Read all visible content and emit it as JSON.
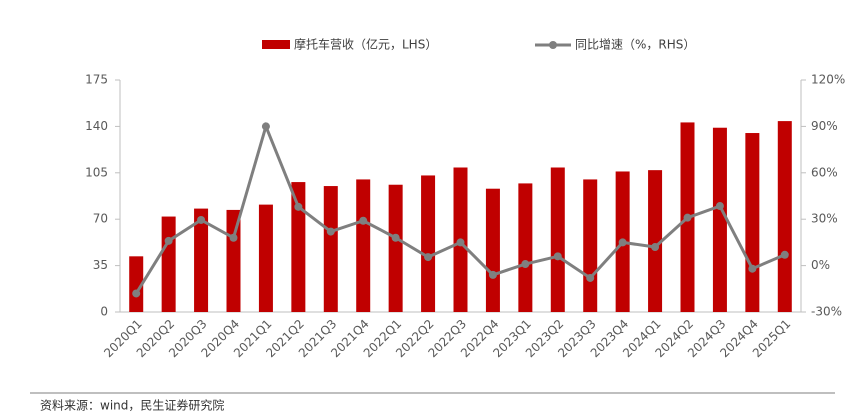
{
  "chart_data": {
    "type": "bar_line",
    "categories": [
      "2020Q1",
      "2020Q2",
      "2020Q3",
      "2020Q4",
      "2021Q1",
      "2021Q2",
      "2021Q3",
      "2021Q4",
      "2022Q1",
      "2022Q2",
      "2022Q3",
      "2022Q4",
      "2023Q1",
      "2023Q2",
      "2023Q3",
      "2023Q4",
      "2024Q1",
      "2024Q2",
      "2024Q3",
      "2024Q4",
      "2025Q1"
    ],
    "series": [
      {
        "name": "摩托车营收（亿元，LHS）",
        "type": "bar",
        "color": "#c00000",
        "values": [
          42,
          72,
          78,
          77,
          81,
          98,
          95,
          100,
          96,
          103,
          109,
          93,
          97,
          109,
          100,
          106,
          107,
          143,
          139,
          135,
          144
        ]
      },
      {
        "name": "同比增速（%，RHS）",
        "type": "line",
        "axis": "y2",
        "color": "#7f7f7f",
        "values": [
          -18,
          16,
          29.5,
          18,
          90,
          38,
          22,
          29,
          18,
          5.5,
          15,
          -6,
          1,
          6,
          -8,
          15,
          12,
          31,
          38.5,
          -2,
          7
        ]
      }
    ],
    "ylim": [
      0,
      175
    ],
    "yticks": [
      0,
      35,
      70,
      105,
      140,
      175
    ],
    "y2lim": [
      -30,
      120
    ],
    "y2ticks": [
      {
        "value": -30,
        "label": "-30%"
      },
      {
        "value": 0,
        "label": "0%"
      },
      {
        "value": 30,
        "label": "30%"
      },
      {
        "value": 60,
        "label": "60%"
      },
      {
        "value": 90,
        "label": "90%"
      },
      {
        "value": 120,
        "label": "120%"
      }
    ],
    "source": "资料来源：wind，民生证券研究院"
  }
}
